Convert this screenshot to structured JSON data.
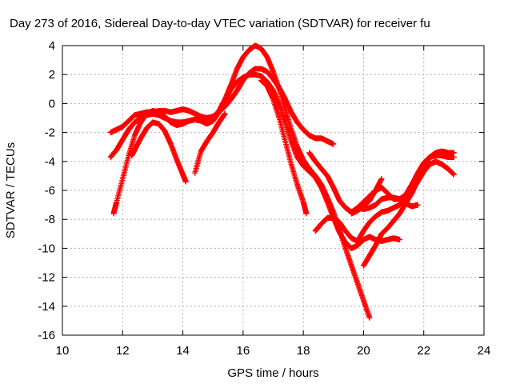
{
  "chart_data": {
    "type": "scatter",
    "title": "Day 273 of 2016, Sidereal Day-to-day VTEC variation (SDTVAR) for receiver fu",
    "xlabel": "GPS time / hours",
    "ylabel": "SDTVAR / TECUs",
    "xlim": [
      10,
      24
    ],
    "ylim": [
      -16,
      4
    ],
    "xticks": [
      10,
      12,
      14,
      16,
      18,
      20,
      22,
      24
    ],
    "yticks": [
      -16,
      -14,
      -12,
      -10,
      -8,
      -6,
      -4,
      -2,
      0,
      2,
      4
    ],
    "grid": true,
    "legend": "none",
    "marker": "+",
    "color": "#ff0000",
    "series": [
      {
        "x": [
          11.6,
          11.8,
          12.0,
          12.2,
          12.4,
          12.6,
          12.8,
          13.0,
          13.2,
          13.4,
          13.6,
          13.8,
          14.0,
          14.2,
          14.4,
          14.6,
          14.8,
          15.0,
          15.2,
          15.4,
          15.6,
          15.8,
          16.0,
          16.2,
          16.4,
          16.6,
          16.8,
          17.0,
          17.2,
          17.4,
          17.6,
          17.8,
          18.0,
          18.2,
          18.4,
          18.6,
          18.8,
          19.0
        ],
        "y": [
          -2.0,
          -1.8,
          -1.6,
          -1.2,
          -0.8,
          -0.7,
          -0.6,
          -0.6,
          -0.5,
          -0.5,
          -0.6,
          -0.5,
          -0.4,
          -0.5,
          -0.7,
          -0.9,
          -1.0,
          -0.9,
          -0.6,
          -0.2,
          0.3,
          0.9,
          1.6,
          2.1,
          2.4,
          2.4,
          2.2,
          1.7,
          1.1,
          0.3,
          -0.6,
          -1.3,
          -1.8,
          -2.2,
          -2.4,
          -2.4,
          -2.6,
          -2.8
        ]
      },
      {
        "x": [
          11.6,
          11.8,
          12.0,
          12.2,
          12.4,
          12.6,
          12.8,
          13.0,
          13.2,
          13.4,
          13.6,
          13.8,
          14.0,
          14.2,
          14.4,
          14.6,
          14.8,
          15.0,
          15.2,
          15.4,
          15.6,
          15.8,
          16.0,
          16.2,
          16.4,
          16.6,
          16.8,
          17.0,
          17.2,
          17.4,
          17.6,
          17.8,
          18.0,
          18.2,
          18.4,
          18.6,
          18.8,
          19.0,
          19.2,
          19.4,
          19.6,
          19.8,
          20.0,
          20.2
        ],
        "y": [
          -3.7,
          -3.2,
          -2.5,
          -1.8,
          -1.3,
          -1.0,
          -0.8,
          -0.7,
          -0.8,
          -1.0,
          -1.2,
          -1.3,
          -1.3,
          -1.2,
          -1.1,
          -1.1,
          -1.2,
          -1.0,
          -0.5,
          0.3,
          1.3,
          2.4,
          3.2,
          3.7,
          4.0,
          3.8,
          3.2,
          2.2,
          1.0,
          -0.4,
          -1.8,
          -3.0,
          -3.9,
          -4.5,
          -5.0,
          -5.6,
          -6.5,
          -7.5,
          -8.7,
          -10.0,
          -11.2,
          -12.4,
          -13.6,
          -14.8
        ]
      },
      {
        "x": [
          11.7,
          11.8,
          12.0,
          12.2,
          12.4,
          12.6,
          12.8,
          13.0,
          13.2,
          13.4,
          13.6,
          13.8,
          14.0,
          14.2,
          14.4,
          14.6,
          14.8,
          15.0,
          15.2,
          15.4,
          15.6,
          15.8,
          16.0,
          16.2,
          16.4,
          16.6,
          16.8,
          17.0,
          17.2,
          17.4,
          17.6,
          17.8,
          18.0,
          18.2,
          18.4,
          18.6,
          18.8,
          19.0,
          19.2,
          19.4,
          19.6,
          19.8,
          20.0,
          20.2,
          20.4,
          20.6,
          20.8,
          21.0,
          21.2
        ],
        "y": [
          -7.6,
          -6.8,
          -5.2,
          -3.6,
          -2.2,
          -1.3,
          -0.7,
          -0.5,
          -0.6,
          -0.9,
          -1.3,
          -1.5,
          -1.4,
          -1.2,
          -1.1,
          -1.2,
          -1.4,
          -1.2,
          -0.6,
          0.2,
          1.0,
          1.5,
          1.8,
          2.0,
          2.0,
          1.9,
          1.5,
          0.9,
          -0.1,
          -1.3,
          -2.6,
          -3.7,
          -4.3,
          -4.7,
          -5.1,
          -5.8,
          -6.8,
          -7.9,
          -8.9,
          -9.6,
          -10.0,
          -9.8,
          -9.4,
          -9.2,
          -9.4,
          -9.5,
          -9.4,
          -9.3,
          -9.4
        ]
      },
      {
        "x": [
          12.3,
          12.4,
          12.6,
          12.8,
          13.0,
          13.2,
          13.4,
          13.6,
          13.8,
          14.0,
          14.1
        ],
        "y": [
          -3.6,
          -3.2,
          -2.4,
          -1.7,
          -1.3,
          -1.4,
          -1.9,
          -2.8,
          -3.9,
          -4.9,
          -5.4
        ]
      },
      {
        "x": [
          16.6,
          16.8,
          17.0,
          17.2,
          17.4,
          17.6,
          17.8,
          18.0,
          18.1
        ],
        "y": [
          1.6,
          1.2,
          0.3,
          -1.0,
          -2.6,
          -4.2,
          -5.6,
          -6.8,
          -7.6
        ]
      },
      {
        "x": [
          14.4,
          14.6,
          14.8,
          15.0,
          15.2,
          15.4
        ],
        "y": [
          -4.8,
          -3.3,
          -2.6,
          -2.0,
          -1.3,
          -0.7
        ]
      },
      {
        "x": [
          18.2,
          18.4,
          18.6,
          18.8,
          19.0,
          19.2,
          19.4,
          19.6,
          19.8,
          20.0,
          20.2,
          20.4,
          20.6,
          20.8,
          21.0,
          21.2,
          21.4,
          21.6,
          21.8,
          22.0,
          22.2,
          22.4,
          22.6,
          22.8,
          23.0
        ],
        "y": [
          -3.4,
          -4.0,
          -4.5,
          -5.0,
          -5.8,
          -6.7,
          -7.2,
          -7.5,
          -7.2,
          -6.8,
          -6.4,
          -6.0,
          -5.8,
          -6.2,
          -6.6,
          -6.6,
          -6.3,
          -5.6,
          -4.8,
          -4.1,
          -3.7,
          -3.6,
          -3.6,
          -3.7,
          -3.7
        ]
      },
      {
        "x": [
          18.4,
          18.6,
          18.8,
          19.0,
          19.2,
          19.4,
          19.6,
          19.8,
          20.0,
          20.2,
          20.4,
          20.6,
          20.8,
          21.0,
          21.2,
          21.4,
          21.6,
          21.8,
          22.0,
          22.2,
          22.4,
          22.6,
          22.8,
          23.0
        ],
        "y": [
          -8.8,
          -8.3,
          -7.9,
          -7.9,
          -8.2,
          -8.8,
          -9.3,
          -9.5,
          -8.8,
          -8.2,
          -7.8,
          -7.5,
          -7.4,
          -7.2,
          -7.0,
          -6.6,
          -6.1,
          -5.4,
          -4.7,
          -4.2,
          -4.0,
          -4.2,
          -4.5,
          -4.9
        ]
      },
      {
        "x": [
          20.0,
          20.2,
          20.4,
          20.6,
          20.8,
          21.0,
          21.2,
          21.4,
          21.6,
          21.8,
          22.0,
          22.2,
          22.4,
          22.6,
          22.8,
          23.0
        ],
        "y": [
          -11.2,
          -10.5,
          -9.8,
          -9.0,
          -8.6,
          -8.1,
          -7.6,
          -6.9,
          -6.2,
          -5.3,
          -4.4,
          -3.7,
          -3.4,
          -3.3,
          -3.4,
          -3.4
        ]
      },
      {
        "x": [
          19.8,
          20.0,
          20.2,
          20.4,
          20.6,
          20.8,
          21.0,
          21.2,
          21.4,
          21.6,
          21.8
        ],
        "y": [
          -7.2,
          -7.3,
          -7.2,
          -7.0,
          -6.6,
          -6.5,
          -6.5,
          -6.6,
          -6.9,
          -7.1,
          -7.0
        ]
      },
      {
        "x": [
          19.6,
          19.8,
          20.0,
          20.2,
          20.4,
          20.6
        ],
        "y": [
          -7.6,
          -7.4,
          -7.1,
          -6.7,
          -6.0,
          -5.2
        ]
      }
    ]
  }
}
